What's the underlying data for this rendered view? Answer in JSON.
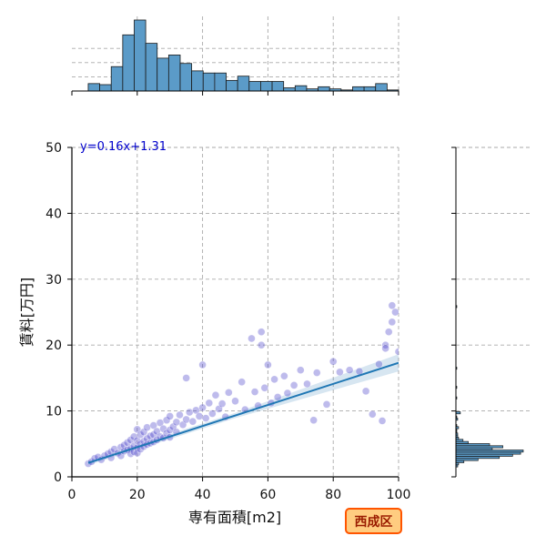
{
  "chart_data": {
    "type": "scatter",
    "title": "",
    "xlabel": "専有面積[m2]",
    "ylabel": "賃料[万円]",
    "xlim": [
      0,
      100
    ],
    "ylim": [
      0,
      50
    ],
    "x_ticks": [
      "0",
      "20",
      "40",
      "60",
      "80",
      "100"
    ],
    "y_ticks": [
      "0",
      "10",
      "20",
      "30",
      "40",
      "50"
    ],
    "grid": true,
    "regression": {
      "label": "y=0.16x+1.31",
      "slope": 0.16,
      "intercept": 1.31,
      "x_range": [
        5,
        100
      ]
    },
    "badge": "西成区",
    "points": [
      [
        5,
        2
      ],
      [
        6,
        2.3
      ],
      [
        7,
        2.8
      ],
      [
        8,
        3
      ],
      [
        9,
        2.6
      ],
      [
        10,
        3.2
      ],
      [
        11,
        3.5
      ],
      [
        12,
        3.8
      ],
      [
        12,
        2.9
      ],
      [
        13,
        4.2
      ],
      [
        14,
        3.6
      ],
      [
        15,
        4.5
      ],
      [
        15,
        3.2
      ],
      [
        16,
        4.8
      ],
      [
        16,
        3.9
      ],
      [
        17,
        5.2
      ],
      [
        17,
        4.1
      ],
      [
        18,
        5.6
      ],
      [
        18,
        4.3
      ],
      [
        18,
        3.5
      ],
      [
        19,
        6.1
      ],
      [
        19,
        4.7
      ],
      [
        19,
        3.8
      ],
      [
        20,
        7.2
      ],
      [
        20,
        5.5
      ],
      [
        20,
        4.4
      ],
      [
        20,
        3.6
      ],
      [
        21,
        6.4
      ],
      [
        21,
        5
      ],
      [
        21,
        4.2
      ],
      [
        22,
        6.8
      ],
      [
        22,
        5.4
      ],
      [
        22,
        4.6
      ],
      [
        23,
        7.5
      ],
      [
        23,
        5.8
      ],
      [
        23,
        4.9
      ],
      [
        24,
        6.2
      ],
      [
        24,
        5.1
      ],
      [
        25,
        7.8
      ],
      [
        25,
        6.4
      ],
      [
        25,
        5.3
      ],
      [
        26,
        6.9
      ],
      [
        26,
        5.6
      ],
      [
        27,
        8.2
      ],
      [
        27,
        6.1
      ],
      [
        28,
        7.3
      ],
      [
        28,
        5.9
      ],
      [
        29,
        8.6
      ],
      [
        29,
        6.6
      ],
      [
        30,
        9.2
      ],
      [
        30,
        7.1
      ],
      [
        30,
        6
      ],
      [
        31,
        7.6
      ],
      [
        32,
        8.3
      ],
      [
        32,
        6.8
      ],
      [
        33,
        9.4
      ],
      [
        34,
        7.9
      ],
      [
        35,
        8.7
      ],
      [
        35,
        15
      ],
      [
        36,
        9.8
      ],
      [
        37,
        8.4
      ],
      [
        38,
        10.1
      ],
      [
        39,
        9.2
      ],
      [
        40,
        17
      ],
      [
        40,
        10.5
      ],
      [
        41,
        8.9
      ],
      [
        42,
        11.2
      ],
      [
        43,
        9.6
      ],
      [
        44,
        12.4
      ],
      [
        45,
        10.3
      ],
      [
        46,
        11.1
      ],
      [
        47,
        9.1
      ],
      [
        48,
        12.8
      ],
      [
        50,
        11.5
      ],
      [
        52,
        14.4
      ],
      [
        53,
        10.2
      ],
      [
        55,
        21
      ],
      [
        56,
        12.9
      ],
      [
        57,
        10.8
      ],
      [
        58,
        22
      ],
      [
        58,
        20
      ],
      [
        59,
        13.5
      ],
      [
        60,
        17
      ],
      [
        61,
        11.2
      ],
      [
        62,
        14.8
      ],
      [
        63,
        12.1
      ],
      [
        65,
        15.3
      ],
      [
        66,
        12.7
      ],
      [
        68,
        13.9
      ],
      [
        70,
        16.2
      ],
      [
        72,
        14.1
      ],
      [
        74,
        8.6
      ],
      [
        75,
        15.8
      ],
      [
        78,
        11
      ],
      [
        80,
        17.5
      ],
      [
        82,
        15.9
      ],
      [
        85,
        16.2
      ],
      [
        88,
        16
      ],
      [
        90,
        13
      ],
      [
        92,
        9.5
      ],
      [
        94,
        17.1
      ],
      [
        95,
        8.5
      ],
      [
        96,
        20
      ],
      [
        96,
        19.5
      ],
      [
        97,
        22
      ],
      [
        98,
        26
      ],
      [
        98,
        23.5
      ],
      [
        99,
        25
      ],
      [
        100,
        19
      ]
    ],
    "top_hist": {
      "bin_edges": [
        5,
        100
      ],
      "counts": [
        0.7,
        0.6,
        2.3,
        5.3,
        6.7,
        4.5,
        3.1,
        3.4,
        2.6,
        1.9,
        1.7,
        1.7,
        1.0,
        1.4,
        0.9,
        0.9,
        0.9,
        0.3,
        0.5,
        0.2,
        0.4,
        0.2,
        0.1,
        0.4,
        0.4,
        0.7,
        0.1
      ]
    },
    "right_hist": {
      "bin_edges": [
        1.5,
        26
      ],
      "counts": [
        0.2,
        0.3,
        0.9,
        2.5,
        4.9,
        6.4,
        7.3,
        7.6,
        4.1,
        5.3,
        3.8,
        1.4,
        0.8,
        0.3,
        0.2,
        0.2,
        0.1,
        0.1,
        0.3,
        0.1,
        0,
        0,
        0.2,
        0.1,
        0,
        0.5,
        0,
        0,
        0,
        0,
        0,
        0,
        0.1,
        0,
        0,
        0,
        0,
        0.1,
        0,
        0,
        0,
        0,
        0,
        0,
        0,
        0,
        0.1,
        0,
        0,
        0,
        0,
        0,
        0,
        0,
        0,
        0,
        0,
        0,
        0,
        0,
        0,
        0,
        0,
        0,
        0,
        0,
        0,
        0,
        0,
        0,
        0,
        0,
        0,
        0,
        0,
        0.1
      ]
    }
  }
}
